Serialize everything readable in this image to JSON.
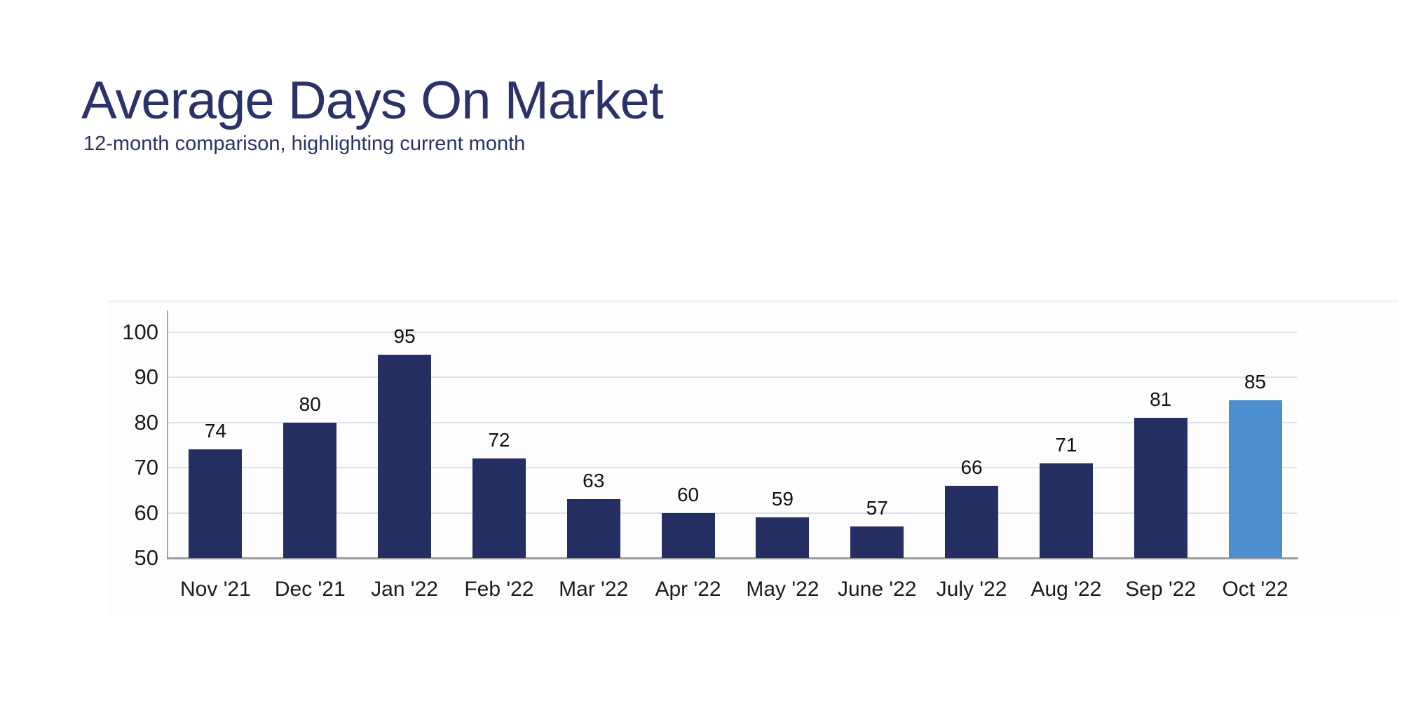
{
  "header": {
    "title": "Average Days On Market",
    "subtitle": "12-month comparison, highlighting current month",
    "title_color": "#2a3269"
  },
  "chart_data": {
    "type": "bar",
    "title": "Average Days On Market",
    "subtitle": "12-month comparison, highlighting current month",
    "categories": [
      "Nov '21",
      "Dec '21",
      "Jan '22",
      "Feb '22",
      "Mar '22",
      "Apr '22",
      "May '22",
      "June '22",
      "July '22",
      "Aug '22",
      "Sep '22",
      "Oct '22"
    ],
    "values": [
      74,
      80,
      95,
      72,
      63,
      60,
      59,
      57,
      66,
      71,
      81,
      85
    ],
    "highlighted_index": 11,
    "highlighted_category": "Oct '22",
    "bar_color": "#252f63",
    "highlight_color": "#4b8fce",
    "grid_color": "#dae3ee",
    "axis_color": "#9b9b9b",
    "label_color": "#1b1b1b",
    "xlabel": "",
    "ylabel": "",
    "ylim": [
      50,
      100
    ],
    "yticks": [
      50,
      60,
      70,
      80,
      90,
      100
    ],
    "gridlines": [
      60,
      70,
      80,
      90,
      100
    ],
    "grid": "horizontal only",
    "legend_position": "none",
    "value_labels": "above each bar"
  }
}
